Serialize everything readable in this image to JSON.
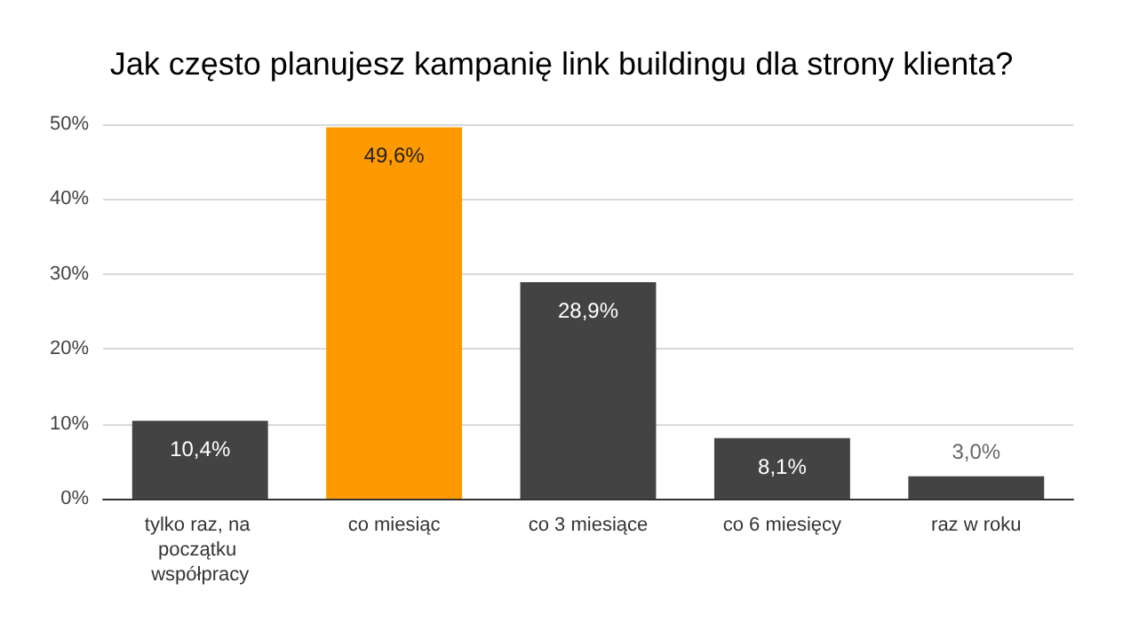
{
  "chart_data": {
    "type": "bar",
    "title": "Jak często planujesz kampanię link buildingu dla strony klienta?",
    "categories": [
      "tylko raz, na początku współpracy",
      "co miesiąc",
      "co 3 miesiące",
      "co 6 miesięcy",
      "raz w roku"
    ],
    "values": [
      10.4,
      49.6,
      28.9,
      8.1,
      3.0
    ],
    "colors": [
      "#434343",
      "#ff9900",
      "#434343",
      "#434343",
      "#434343"
    ],
    "value_labels": [
      "10,4%",
      "49,6%",
      "28,9%",
      "8,1%",
      "3,0%"
    ],
    "ylim": [
      0,
      50
    ],
    "yticks": [
      {
        "value": 0,
        "label": "0%"
      },
      {
        "value": 10,
        "label": "10%"
      },
      {
        "value": 20,
        "label": "20%"
      },
      {
        "value": 30,
        "label": "30%"
      },
      {
        "value": 40,
        "label": "40%"
      },
      {
        "value": 50,
        "label": "50%"
      }
    ],
    "grid": "y"
  }
}
